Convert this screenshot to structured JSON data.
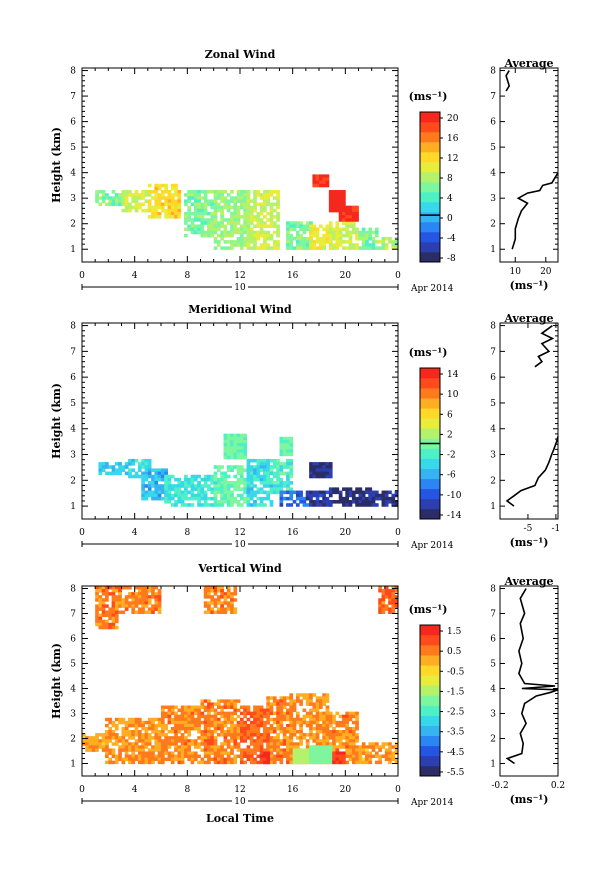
{
  "figure": {
    "date_label": "Apr 2014",
    "day_label": "10",
    "xlabel_bottom": "Local Time"
  },
  "chart_data": [
    {
      "type": "heatmap",
      "id": "zonal",
      "title": "Zonal Wind",
      "ylabel": "Height (km)",
      "xlabel": "",
      "x_ticks": [
        "0",
        "4",
        "8",
        "12",
        "16",
        "20",
        "0"
      ],
      "y_ticks": [
        "1",
        "2",
        "3",
        "4",
        "5",
        "6",
        "7",
        "8"
      ],
      "xlim": [
        0,
        24
      ],
      "ylim": [
        0.5,
        8.1
      ],
      "colorbar": {
        "unit": "(ms⁻¹)",
        "ticks": [
          "20",
          "16",
          "12",
          "8",
          "4",
          "0",
          "-4",
          "-8"
        ],
        "range": [
          -10,
          22
        ],
        "zero_line": 0
      },
      "regions": [
        {
          "x": [
            1.2,
            3
          ],
          "y": [
            2.8,
            3.3
          ],
          "value": 6
        },
        {
          "x": [
            3,
            5
          ],
          "y": [
            2.5,
            3.3
          ],
          "value": 9
        },
        {
          "x": [
            5,
            7.5
          ],
          "y": [
            2.3,
            3.5
          ],
          "value": 12
        },
        {
          "x": [
            8,
            10
          ],
          "y": [
            1.6,
            3.3
          ],
          "value": 6
        },
        {
          "x": [
            10,
            12.5
          ],
          "y": [
            1.0,
            3.2
          ],
          "value": 7
        },
        {
          "x": [
            12.5,
            15
          ],
          "y": [
            1.0,
            3.3
          ],
          "value": 9
        },
        {
          "x": [
            15.5,
            17.5
          ],
          "y": [
            1.0,
            2.0
          ],
          "value": 6
        },
        {
          "x": [
            17.5,
            19
          ],
          "y": [
            1.0,
            1.9
          ],
          "value": 11
        },
        {
          "x": [
            19,
            21
          ],
          "y": [
            1.0,
            2.0
          ],
          "value": 9
        },
        {
          "x": [
            21,
            22.5
          ],
          "y": [
            1.0,
            1.8
          ],
          "value": 6
        },
        {
          "x": [
            22.5,
            24
          ],
          "y": [
            1.0,
            1.4
          ],
          "value": 8
        }
      ],
      "hot_spots": [
        {
          "x": [
            17.6,
            18.6
          ],
          "y": [
            3.5,
            3.9
          ],
          "value": 20
        },
        {
          "x": [
            18.8,
            19.8
          ],
          "y": [
            2.5,
            3.3
          ],
          "value": 21
        },
        {
          "x": [
            19.7,
            20.8
          ],
          "y": [
            2.1,
            2.6
          ],
          "value": 20
        }
      ],
      "profile": {
        "title": "Average",
        "xlim": [
          5,
          24
        ],
        "x_ticks": [
          "10",
          "20"
        ],
        "x_tick_values": [
          10,
          20
        ],
        "xunit": "(ms⁻¹)",
        "segments": [
          [
            [
              9,
              1.0
            ],
            [
              10,
              1.4
            ],
            [
              10,
              1.8
            ],
            [
              11,
              2.2
            ],
            [
              12,
              2.5
            ],
            [
              14,
              2.8
            ],
            [
              11,
              3.0
            ],
            [
              14,
              3.2
            ],
            [
              18,
              3.3
            ],
            [
              19,
              3.5
            ],
            [
              22,
              3.6
            ],
            [
              24,
              4.0
            ]
          ],
          [
            [
              7,
              7.2
            ],
            [
              8,
              7.4
            ],
            [
              7,
              7.8
            ],
            [
              8,
              8.0
            ]
          ]
        ]
      }
    },
    {
      "type": "heatmap",
      "id": "meridional",
      "title": "Meridional Wind",
      "ylabel": "Height (km)",
      "xlabel": "",
      "x_ticks": [
        "0",
        "4",
        "8",
        "12",
        "16",
        "20",
        "0"
      ],
      "y_ticks": [
        "1",
        "2",
        "3",
        "4",
        "5",
        "6",
        "7",
        "8"
      ],
      "xlim": [
        0,
        24
      ],
      "ylim": [
        0.5,
        8.1
      ],
      "colorbar": {
        "unit": "(ms⁻¹)",
        "ticks": [
          "14",
          "10",
          "6",
          "2",
          "-2",
          "-6",
          "-10",
          "-14"
        ],
        "range": [
          -16,
          16
        ],
        "zero_line": 0
      },
      "regions": [
        {
          "x": [
            1.4,
            3.5
          ],
          "y": [
            2.3,
            2.7
          ],
          "value": -5
        },
        {
          "x": [
            3.5,
            5.0
          ],
          "y": [
            2.2,
            2.8
          ],
          "value": -4
        },
        {
          "x": [
            4.5,
            6.5
          ],
          "y": [
            1.3,
            2.4
          ],
          "value": -6
        },
        {
          "x": [
            6.5,
            10
          ],
          "y": [
            1.0,
            2.2
          ],
          "value": -3
        },
        {
          "x": [
            10,
            12.5
          ],
          "y": [
            1.0,
            2.5
          ],
          "value": -1
        },
        {
          "x": [
            12.5,
            14.5
          ],
          "y": [
            1.0,
            2.8
          ],
          "value": -4
        },
        {
          "x": [
            14.5,
            16
          ],
          "y": [
            1.5,
            2.8
          ],
          "value": -2
        },
        {
          "x": [
            15,
            17
          ],
          "y": [
            1.0,
            1.6
          ],
          "value": -10
        },
        {
          "x": [
            17,
            19
          ],
          "y": [
            1.0,
            1.6
          ],
          "value": -13
        },
        {
          "x": [
            19,
            22
          ],
          "y": [
            1.0,
            1.7
          ],
          "value": -15
        },
        {
          "x": [
            22,
            24
          ],
          "y": [
            1.0,
            1.5
          ],
          "value": -14
        }
      ],
      "hot_spots": [
        {
          "x": [
            10.8,
            12.3
          ],
          "y": [
            2.9,
            3.7
          ],
          "value": -1
        },
        {
          "x": [
            15.1,
            15.8
          ],
          "y": [
            3.0,
            3.6
          ],
          "value": -1
        },
        {
          "x": [
            17.5,
            19.0
          ],
          "y": [
            2.2,
            2.6
          ],
          "value": -14
        }
      ],
      "profile": {
        "title": "Average",
        "xlim": [
          -9,
          -0.7
        ],
        "x_ticks": [
          "-5",
          "-1"
        ],
        "x_tick_values": [
          -5,
          -1
        ],
        "xunit": "(ms⁻¹)",
        "segments": [
          [
            [
              -7,
              1.0
            ],
            [
              -8,
              1.2
            ],
            [
              -7,
              1.4
            ],
            [
              -6,
              1.6
            ],
            [
              -4,
              1.8
            ],
            [
              -3.5,
              2.1
            ],
            [
              -2.5,
              2.4
            ],
            [
              -2,
              2.7
            ],
            [
              -1.6,
              3.0
            ],
            [
              -1.3,
              3.2
            ],
            [
              -0.9,
              3.5
            ],
            [
              -0.7,
              3.7
            ]
          ],
          [
            [
              -4,
              6.4
            ],
            [
              -3,
              6.6
            ],
            [
              -3.5,
              6.8
            ],
            [
              -2,
              7.0
            ],
            [
              -3,
              7.3
            ],
            [
              -1.5,
              7.5
            ],
            [
              -3,
              7.7
            ],
            [
              -2,
              7.9
            ],
            [
              -1.5,
              8.0
            ]
          ]
        ]
      }
    },
    {
      "type": "heatmap",
      "id": "vertical",
      "title": "Vertical Wind",
      "ylabel": "Height (km)",
      "xlabel": "",
      "x_ticks": [
        "0",
        "4",
        "8",
        "12",
        "16",
        "20",
        "0"
      ],
      "y_ticks": [
        "1",
        "2",
        "3",
        "4",
        "5",
        "6",
        "7",
        "8"
      ],
      "xlim": [
        0,
        24
      ],
      "ylim": [
        0.5,
        8.1
      ],
      "colorbar": {
        "unit": "(ms⁻¹)",
        "ticks": [
          "1.5",
          "0.5",
          "-0.5",
          "-1.5",
          "-2.5",
          "-3.5",
          "-4.5",
          "-5.5"
        ],
        "range": [
          -6,
          2
        ],
        "zero_line": null
      },
      "regions": [
        {
          "x": [
            0,
            2
          ],
          "y": [
            1.6,
            2.2
          ],
          "value": 0.3
        },
        {
          "x": [
            2,
            6
          ],
          "y": [
            1.0,
            2.8
          ],
          "value": 0.4
        },
        {
          "x": [
            6,
            9
          ],
          "y": [
            1.0,
            3.2
          ],
          "value": 0.5
        },
        {
          "x": [
            9,
            12
          ],
          "y": [
            1.0,
            3.5
          ],
          "value": 0.6
        },
        {
          "x": [
            12,
            14
          ],
          "y": [
            1.0,
            3.3
          ],
          "value": 0.9
        },
        {
          "x": [
            14,
            16
          ],
          "y": [
            1.0,
            3.6
          ],
          "value": 0.6
        },
        {
          "x": [
            16,
            18.5
          ],
          "y": [
            1.0,
            3.8
          ],
          "value": 0.4
        },
        {
          "x": [
            18.5,
            21
          ],
          "y": [
            1.0,
            3.0
          ],
          "value": 0.5
        },
        {
          "x": [
            21,
            24
          ],
          "y": [
            1.0,
            1.8
          ],
          "value": 0.3
        },
        {
          "x": [
            1,
            2.5
          ],
          "y": [
            6.5,
            8.0
          ],
          "value": 0.7
        },
        {
          "x": [
            2.5,
            6
          ],
          "y": [
            7.0,
            8.0
          ],
          "value": 0.6
        },
        {
          "x": [
            9.5,
            11.5
          ],
          "y": [
            7.0,
            8.0
          ],
          "value": 0.6
        },
        {
          "x": [
            22.5,
            24
          ],
          "y": [
            7.0,
            8.0
          ],
          "value": 0.8
        }
      ],
      "hot_spots": [
        {
          "x": [
            16.2,
            17.5
          ],
          "y": [
            1.0,
            1.6
          ],
          "value": -1.6
        },
        {
          "x": [
            17.5,
            19.0
          ],
          "y": [
            1.0,
            1.7
          ],
          "value": -2.0
        },
        {
          "x": [
            13.6,
            14.2
          ],
          "y": [
            1.0,
            1.4
          ],
          "value": 1.5
        },
        {
          "x": [
            19.2,
            19.8
          ],
          "y": [
            1.0,
            1.4
          ],
          "value": 1.4
        }
      ],
      "profile": {
        "title": "Average",
        "xlim": [
          -0.2,
          0.2
        ],
        "x_ticks": [
          "-0.2",
          "0.2"
        ],
        "x_tick_values": [
          -0.2,
          0.2
        ],
        "xunit": "(ms⁻¹)",
        "segments": [
          [
            [
              -0.1,
              1.0
            ],
            [
              -0.15,
              1.2
            ],
            [
              -0.05,
              1.4
            ],
            [
              -0.04,
              1.8
            ],
            [
              -0.06,
              2.2
            ],
            [
              -0.02,
              2.6
            ],
            [
              -0.05,
              3.0
            ],
            [
              -0.03,
              3.4
            ],
            [
              0.05,
              3.7
            ],
            [
              0.15,
              3.85
            ],
            [
              0.2,
              3.95
            ],
            [
              -0.05,
              4.0
            ],
            [
              0.18,
              4.1
            ],
            [
              -0.03,
              4.2
            ],
            [
              -0.07,
              4.6
            ],
            [
              -0.05,
              5.0
            ],
            [
              -0.07,
              5.5
            ],
            [
              -0.04,
              6.0
            ],
            [
              -0.06,
              6.6
            ],
            [
              -0.03,
              7.0
            ],
            [
              -0.06,
              7.6
            ],
            [
              -0.02,
              8.0
            ]
          ]
        ]
      }
    }
  ],
  "colors": {
    "jet": [
      "#2b2d66",
      "#2c3fb0",
      "#2456e3",
      "#2a86f2",
      "#35b4f1",
      "#37d8ea",
      "#4ef0c6",
      "#7ef69d",
      "#b4f26b",
      "#e8ec3a",
      "#ffd82a",
      "#ffad22",
      "#ff7a1c",
      "#ff4a1c",
      "#f4281c"
    ]
  }
}
